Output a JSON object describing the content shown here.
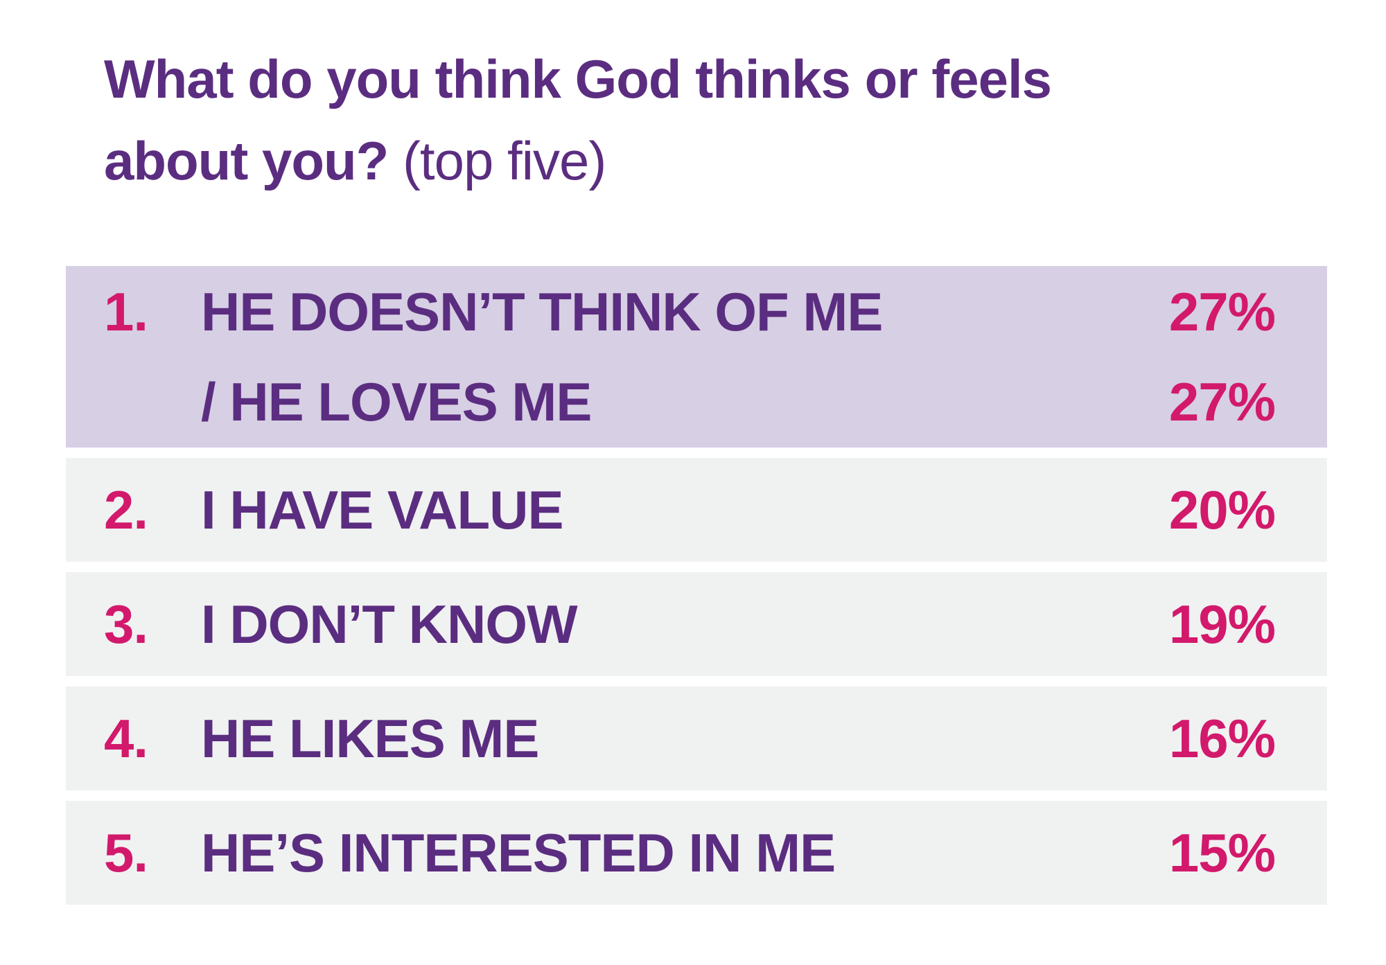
{
  "title": {
    "line1": "What do you think God thinks or feels",
    "line2_bold": "about you?",
    "line2_light": "(top five)"
  },
  "list": {
    "items": [
      {
        "rank": "1.",
        "label_lines": [
          "HE DOESN’T THINK OF ME",
          "/ HE LOVES ME"
        ],
        "value_lines": [
          "27%",
          "27%"
        ],
        "highlighted": true
      },
      {
        "rank": "2.",
        "label_lines": [
          "I HAVE VALUE"
        ],
        "value_lines": [
          "20%"
        ],
        "highlighted": false
      },
      {
        "rank": "3.",
        "label_lines": [
          "I DON’T KNOW"
        ],
        "value_lines": [
          "19%"
        ],
        "highlighted": false
      },
      {
        "rank": "4.",
        "label_lines": [
          "HE LIKES ME"
        ],
        "value_lines": [
          "16%"
        ],
        "highlighted": false
      },
      {
        "rank": "5.",
        "label_lines": [
          "HE’S INTERESTED IN ME"
        ],
        "value_lines": [
          "15%"
        ],
        "highlighted": false
      }
    ]
  },
  "colors": {
    "purple_text": "#5b2d80",
    "pink_accent": "#d2196b",
    "highlight_row_bg": "#d7cfe4",
    "row_bg": "#f0f1f1",
    "page_bg": "#ffffff"
  },
  "chart_data": {
    "type": "table",
    "title": "What do you think God thinks or feels about you? (top five)",
    "rows": [
      {
        "rank": 1,
        "labels": [
          "HE DOESN’T THINK OF ME",
          "/ HE LOVES ME"
        ],
        "values_pct": [
          27,
          27
        ],
        "highlighted": true
      },
      {
        "rank": 2,
        "labels": [
          "I HAVE VALUE"
        ],
        "values_pct": [
          20
        ],
        "highlighted": false
      },
      {
        "rank": 3,
        "labels": [
          "I DON’T KNOW"
        ],
        "values_pct": [
          19
        ],
        "highlighted": false
      },
      {
        "rank": 4,
        "labels": [
          "HE LIKES ME"
        ],
        "values_pct": [
          16
        ],
        "highlighted": false
      },
      {
        "rank": 5,
        "labels": [
          "HE’S INTERESTED IN ME"
        ],
        "values_pct": [
          15
        ],
        "highlighted": false
      }
    ],
    "value_unit": "%",
    "legend_position": "none",
    "grid": false
  }
}
